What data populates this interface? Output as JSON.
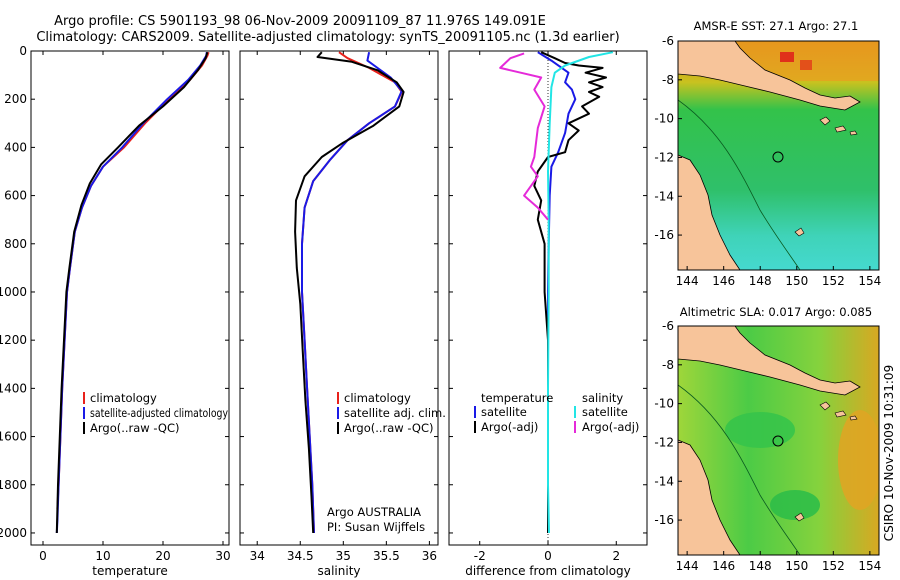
{
  "header": {
    "title_line1": "Argo profile: CS 5901193_98 06-Nov-2009 20091109_87 11.976S 149.091E",
    "title_line2": "Climatology: CARS2009. Satellite-adjusted climatology: synTS_20091105.nc (1.3d earlier)"
  },
  "side_label": "CSIRO 10-Nov-2009 10:31:09",
  "colors": {
    "climatology": "#e8211b",
    "satellite": "#1a1ae6",
    "argo": "#000000",
    "sal_satellite": "#22e5e5",
    "sal_argo": "#e52ad9",
    "land": "#f7c49a",
    "ocean_green": "#22c24a",
    "warm": "#e08a1a"
  },
  "chart_data": [
    {
      "type": "line",
      "id": "temperature",
      "xlabel": "temperature",
      "ylabel": "",
      "xlim": [
        -2,
        31
      ],
      "ylim": [
        2050,
        0
      ],
      "xticks": [
        0,
        10,
        20,
        30
      ],
      "yticks": [
        0,
        200,
        400,
        600,
        800,
        1000,
        1200,
        1400,
        1600,
        1800,
        2000
      ],
      "legend": [
        "climatology",
        "satellite-adjusted climatology",
        "Argo(..raw -QC)"
      ],
      "series": [
        {
          "name": "climatology",
          "color": "#e8211b",
          "points": [
            [
              27.6,
              5
            ],
            [
              27.4,
              20
            ],
            [
              26.5,
              60
            ],
            [
              24.5,
              120
            ],
            [
              21,
              200
            ],
            [
              17,
              300
            ],
            [
              13.5,
              400
            ],
            [
              10,
              480
            ],
            [
              8,
              560
            ],
            [
              6.5,
              650
            ],
            [
              5.3,
              750
            ],
            [
              4.5,
              900
            ],
            [
              4,
              1000
            ],
            [
              3.6,
              1200
            ],
            [
              3.2,
              1400
            ],
            [
              2.9,
              1600
            ],
            [
              2.6,
              1800
            ],
            [
              2.4,
              1900
            ]
          ]
        },
        {
          "name": "satellite-adjusted climatology",
          "color": "#1a1ae6",
          "points": [
            [
              27.3,
              5
            ],
            [
              27.2,
              20
            ],
            [
              26.2,
              60
            ],
            [
              24.2,
              120
            ],
            [
              20.7,
              200
            ],
            [
              16.7,
              300
            ],
            [
              13.2,
              400
            ],
            [
              10,
              480
            ],
            [
              8,
              560
            ],
            [
              6.5,
              650
            ],
            [
              5.3,
              750
            ],
            [
              4.5,
              900
            ],
            [
              4,
              1000
            ],
            [
              3.6,
              1200
            ],
            [
              3.2,
              1400
            ],
            [
              2.9,
              1600
            ],
            [
              2.6,
              1800
            ],
            [
              2.4,
              1950
            ],
            [
              2.3,
              2000
            ]
          ]
        },
        {
          "name": "Argo(..raw -QC)",
          "color": "#000000",
          "points": [
            [
              27.4,
              5
            ],
            [
              27.1,
              30
            ],
            [
              25.8,
              80
            ],
            [
              23.5,
              150
            ],
            [
              20,
              230
            ],
            [
              16,
              310
            ],
            [
              12.5,
              400
            ],
            [
              9.7,
              470
            ],
            [
              7.8,
              550
            ],
            [
              6.4,
              640
            ],
            [
              5.2,
              750
            ],
            [
              4.4,
              900
            ],
            [
              3.9,
              1000
            ],
            [
              3.5,
              1200
            ],
            [
              3.1,
              1400
            ],
            [
              2.8,
              1600
            ],
            [
              2.5,
              1800
            ],
            [
              2.3,
              2000
            ]
          ]
        }
      ]
    },
    {
      "type": "line",
      "id": "salinity",
      "xlabel": "salinity",
      "ylabel": "",
      "xlim": [
        33.8,
        36.1
      ],
      "ylim": [
        2050,
        0
      ],
      "xticks": [
        34,
        34.5,
        35,
        35.5,
        36
      ],
      "legend": [
        "climatology",
        "satellite adj. clim.",
        "Argo(..raw -QC)"
      ],
      "annotation_line1": "Argo AUSTRALIA",
      "annotation_line2": "PI: Susan Wijffels",
      "series": [
        {
          "name": "climatology",
          "color": "#e8211b",
          "points": [
            [
              34.95,
              5
            ],
            [
              35.05,
              30
            ],
            [
              35.3,
              70
            ],
            [
              35.6,
              130
            ],
            [
              35.68,
              170
            ],
            [
              35.6,
              230
            ],
            [
              35.3,
              300
            ],
            [
              35.05,
              370
            ],
            [
              34.85,
              450
            ],
            [
              34.65,
              540
            ],
            [
              34.55,
              650
            ],
            [
              34.52,
              800
            ],
            [
              34.52,
              1000
            ],
            [
              34.55,
              1200
            ],
            [
              34.58,
              1400
            ],
            [
              34.61,
              1600
            ],
            [
              34.64,
              1800
            ],
            [
              34.66,
              2000
            ]
          ]
        },
        {
          "name": "satellite adj. clim.",
          "color": "#1a1ae6",
          "points": [
            [
              35.3,
              5
            ],
            [
              35.28,
              40
            ],
            [
              35.55,
              110
            ],
            [
              35.68,
              165
            ],
            [
              35.6,
              230
            ],
            [
              35.3,
              300
            ],
            [
              35.05,
              370
            ],
            [
              34.85,
              450
            ],
            [
              34.65,
              540
            ],
            [
              34.55,
              650
            ],
            [
              34.52,
              800
            ],
            [
              34.52,
              1000
            ],
            [
              34.55,
              1200
            ],
            [
              34.58,
              1400
            ],
            [
              34.61,
              1600
            ],
            [
              34.64,
              1800
            ],
            [
              34.66,
              2000
            ]
          ]
        },
        {
          "name": "Argo(..raw -QC)",
          "color": "#000000",
          "points": [
            [
              34.75,
              5
            ],
            [
              34.7,
              25
            ],
            [
              35.1,
              45
            ],
            [
              35.4,
              80
            ],
            [
              35.62,
              130
            ],
            [
              35.7,
              170
            ],
            [
              35.65,
              230
            ],
            [
              35.35,
              310
            ],
            [
              35.0,
              380
            ],
            [
              34.75,
              440
            ],
            [
              34.55,
              520
            ],
            [
              34.45,
              620
            ],
            [
              34.44,
              750
            ],
            [
              34.46,
              900
            ],
            [
              34.5,
              1050
            ],
            [
              34.53,
              1250
            ],
            [
              34.56,
              1450
            ],
            [
              34.6,
              1650
            ],
            [
              34.63,
              1850
            ],
            [
              34.65,
              2000
            ]
          ]
        }
      ]
    },
    {
      "type": "line",
      "id": "difference",
      "xlabel": "difference from climatology",
      "ylabel": "",
      "xlim": [
        -2.9,
        2.9
      ],
      "ylim": [
        2050,
        0
      ],
      "xticks": [
        -2,
        0,
        2
      ],
      "legend_left_title": "temperature",
      "legend_right_title": "salinity",
      "legend_left": [
        "satellite",
        "Argo(-adj)"
      ],
      "legend_right": [
        "satellite",
        "Argo(-adj)"
      ],
      "series": [
        {
          "name": "temperature satellite",
          "color": "#1a1ae6",
          "points": [
            [
              -0.3,
              5
            ],
            [
              0.1,
              40
            ],
            [
              0.6,
              90
            ],
            [
              0.5,
              130
            ],
            [
              0.7,
              160
            ],
            [
              0.8,
              200
            ],
            [
              0.6,
              260
            ],
            [
              0.5,
              340
            ],
            [
              0.3,
              420
            ],
            [
              0.1,
              480
            ],
            [
              0.05,
              600
            ],
            [
              0.02,
              800
            ],
            [
              0,
              1000
            ],
            [
              0,
              2000
            ]
          ]
        },
        {
          "name": "temperature Argo(-adj)",
          "color": "#000000",
          "points": [
            [
              -0.2,
              5
            ],
            [
              0.2,
              30
            ],
            [
              0.5,
              50
            ],
            [
              0.9,
              60
            ],
            [
              1.6,
              70
            ],
            [
              1.1,
              90
            ],
            [
              1.7,
              110
            ],
            [
              1.2,
              130
            ],
            [
              1.6,
              150
            ],
            [
              1.2,
              170
            ],
            [
              1.5,
              190
            ],
            [
              1.0,
              230
            ],
            [
              1.2,
              260
            ],
            [
              0.6,
              300
            ],
            [
              0.9,
              330
            ],
            [
              0.6,
              370
            ],
            [
              0.5,
              420
            ],
            [
              0.0,
              440
            ],
            [
              -0.3,
              500
            ],
            [
              -0.4,
              560
            ],
            [
              -0.2,
              620
            ],
            [
              -0.3,
              700
            ],
            [
              -0.1,
              800
            ],
            [
              -0.1,
              1000
            ],
            [
              0,
              1200
            ],
            [
              0,
              1500
            ],
            [
              0,
              2000
            ]
          ]
        },
        {
          "name": "salinity satellite",
          "color": "#22e5e5",
          "points": [
            [
              1.9,
              5
            ],
            [
              1.2,
              25
            ],
            [
              0.5,
              60
            ],
            [
              0.2,
              90
            ],
            [
              0.1,
              150
            ],
            [
              0.05,
              300
            ],
            [
              0.0,
              500
            ],
            [
              0.02,
              700
            ],
            [
              0.02,
              1000
            ],
            [
              0,
              1400
            ],
            [
              0,
              1800
            ],
            [
              0.03,
              2000
            ]
          ]
        },
        {
          "name": "salinity Argo(-adj)",
          "color": "#e52ad9",
          "points": [
            [
              -0.7,
              10
            ],
            [
              -1.1,
              30
            ],
            [
              -1.4,
              70
            ],
            [
              -0.8,
              90
            ],
            [
              -0.2,
              110
            ],
            [
              -0.4,
              160
            ],
            [
              -0.1,
              230
            ],
            [
              -0.3,
              320
            ],
            [
              -0.4,
              440
            ],
            [
              -0.5,
              480
            ],
            [
              -0.3,
              520
            ],
            [
              -0.7,
              600
            ],
            [
              -0.3,
              650
            ],
            [
              0,
              700
            ]
          ]
        }
      ]
    },
    {
      "type": "heatmap",
      "id": "sst_map",
      "title": "AMSR-E SST: 27.1 Argo: 27.1",
      "xlim": [
        143.5,
        154.5
      ],
      "ylim": [
        -17.8,
        -6
      ],
      "xticks": [
        144,
        146,
        148,
        150,
        152,
        154
      ],
      "yticks": [
        -6,
        -8,
        -10,
        -12,
        -14,
        -16
      ],
      "marker": [
        149.09,
        -11.98
      ]
    },
    {
      "type": "heatmap",
      "id": "sla_map",
      "title": "Altimetric SLA: 0.017 Argo: 0.085",
      "xlim": [
        143.5,
        154.5
      ],
      "ylim": [
        -17.8,
        -6
      ],
      "xticks": [
        144,
        146,
        148,
        150,
        152,
        154
      ],
      "yticks": [
        -6,
        -8,
        -10,
        -12,
        -14,
        -16
      ],
      "marker": [
        149.09,
        -11.98
      ]
    }
  ]
}
